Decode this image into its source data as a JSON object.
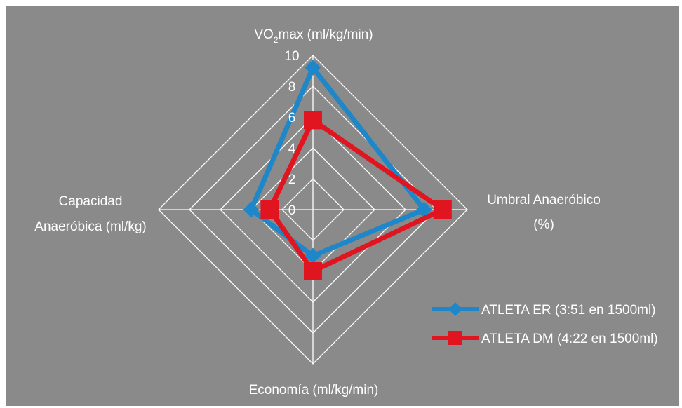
{
  "chart_data": {
    "type": "radar",
    "axes": [
      {
        "name": "VO",
        "sub": "2",
        "suffix": "max (ml/kg/min)"
      },
      {
        "name": "Umbral Anaeróbico",
        "name2": "(%)"
      },
      {
        "name": "Economía (ml/kg/min)"
      },
      {
        "name": "Capacidad",
        "name2": "Anaeróbica (ml/kg)"
      }
    ],
    "ticks": [
      "0",
      "2",
      "4",
      "6",
      "8",
      "10"
    ],
    "range": [
      0,
      10
    ],
    "series": [
      {
        "name": "ATLETA ER (3:51 en 1500ml)",
        "color": "#1d87c9",
        "marker": "diamond",
        "values": [
          9.2,
          7.2,
          3.0,
          4.0
        ]
      },
      {
        "name": "ATLETA DM (4:22 en 1500ml)",
        "color": "#e0151f",
        "marker": "square",
        "values": [
          5.8,
          8.4,
          4.0,
          2.8
        ]
      }
    ]
  }
}
